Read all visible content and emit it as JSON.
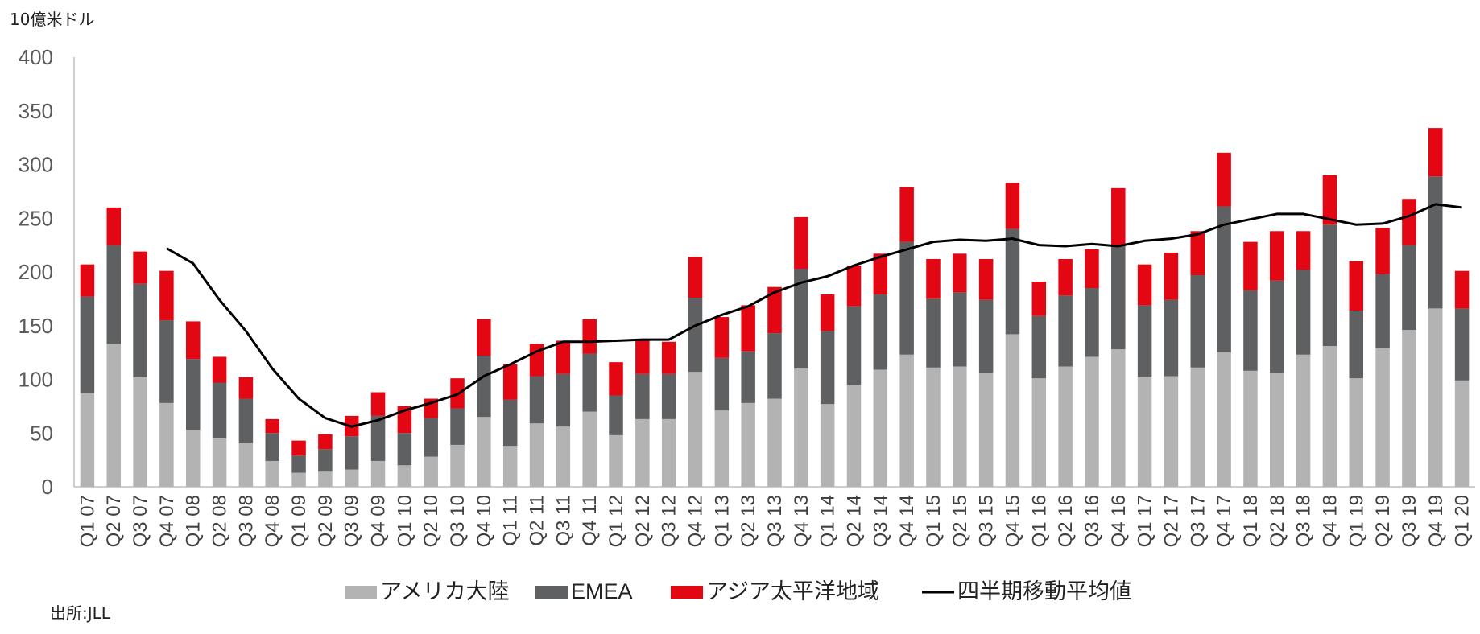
{
  "unit_label": "10億米ドル",
  "source_label": "出所:JLL",
  "colors": {
    "americas": "#b3b3b3",
    "emea": "#5f6062",
    "asia_pacific": "#e30613",
    "moving_average": "#000000"
  },
  "chart_data": {
    "type": "bar",
    "stacked": true,
    "ylabel": "10億米ドル",
    "ylim": [
      0,
      400
    ],
    "yticks": [
      0,
      50,
      100,
      150,
      200,
      250,
      300,
      350,
      400
    ],
    "grid": false,
    "legend_position": "bottom",
    "categories": [
      "Q1 07",
      "Q2 07",
      "Q3 07",
      "Q4 07",
      "Q1 08",
      "Q2 08",
      "Q3 08",
      "Q4 08",
      "Q1 09",
      "Q2 09",
      "Q3 09",
      "Q4 09",
      "Q1 10",
      "Q2 10",
      "Q3 10",
      "Q4 10",
      "Q1 11",
      "Q2 11",
      "Q3 11",
      "Q4 11",
      "Q1 12",
      "Q2 12",
      "Q3 12",
      "Q4 12",
      "Q1 13",
      "Q2 13",
      "Q3 13",
      "Q4 13",
      "Q1 14",
      "Q2 14",
      "Q3 14",
      "Q4 14",
      "Q1 15",
      "Q2 15",
      "Q3 15",
      "Q4 15",
      "Q1 16",
      "Q2 16",
      "Q3 16",
      "Q4 16",
      "Q1 17",
      "Q2 17",
      "Q3 17",
      "Q4 17",
      "Q1 18",
      "Q2 18",
      "Q3 18",
      "Q4 18",
      "Q1 19",
      "Q2 19",
      "Q3 19",
      "Q4 19",
      "Q1 20"
    ],
    "series": [
      {
        "name": "アメリカ大陸",
        "kind": "bar",
        "values": [
          87,
          133,
          102,
          78,
          53,
          45,
          41,
          24,
          13,
          14,
          16,
          24,
          20,
          28,
          39,
          65,
          38,
          59,
          56,
          70,
          48,
          63,
          63,
          107,
          71,
          78,
          82,
          110,
          77,
          95,
          109,
          123,
          111,
          112,
          106,
          142,
          101,
          112,
          121,
          128,
          102,
          103,
          111,
          125,
          108,
          106,
          123,
          131,
          101,
          129,
          146,
          166,
          99
        ]
      },
      {
        "name": "EMEA",
        "kind": "bar",
        "values": [
          90,
          92,
          87,
          77,
          66,
          52,
          41,
          26,
          16,
          21,
          31,
          42,
          30,
          36,
          34,
          57,
          43,
          44,
          49,
          54,
          37,
          42,
          42,
          69,
          49,
          48,
          61,
          93,
          68,
          73,
          70,
          105,
          64,
          69,
          68,
          98,
          58,
          66,
          64,
          97,
          67,
          71,
          86,
          136,
          75,
          86,
          79,
          113,
          63,
          69,
          79,
          123,
          67
        ]
      },
      {
        "name": "アジア太平洋地域",
        "kind": "bar",
        "values": [
          30,
          35,
          30,
          46,
          35,
          24,
          20,
          13,
          14,
          14,
          19,
          22,
          25,
          18,
          28,
          34,
          33,
          30,
          31,
          32,
          31,
          32,
          30,
          38,
          38,
          43,
          43,
          48,
          34,
          38,
          38,
          51,
          37,
          36,
          38,
          43,
          32,
          34,
          36,
          53,
          38,
          44,
          41,
          50,
          45,
          46,
          36,
          46,
          46,
          43,
          43,
          45,
          35
        ]
      },
      {
        "name": "四半期移動平均値",
        "kind": "line",
        "values": [
          null,
          null,
          null,
          222,
          208,
          174,
          145,
          110,
          82,
          64,
          56,
          62,
          71,
          78,
          86,
          103,
          114,
          126,
          135,
          135,
          136,
          137,
          137,
          150,
          160,
          168,
          181,
          190,
          196,
          206,
          214,
          221,
          228,
          230,
          229,
          231,
          225,
          224,
          226,
          224,
          229,
          231,
          235,
          244,
          249,
          254,
          254,
          249,
          244,
          245,
          252,
          263,
          260
        ]
      }
    ]
  }
}
